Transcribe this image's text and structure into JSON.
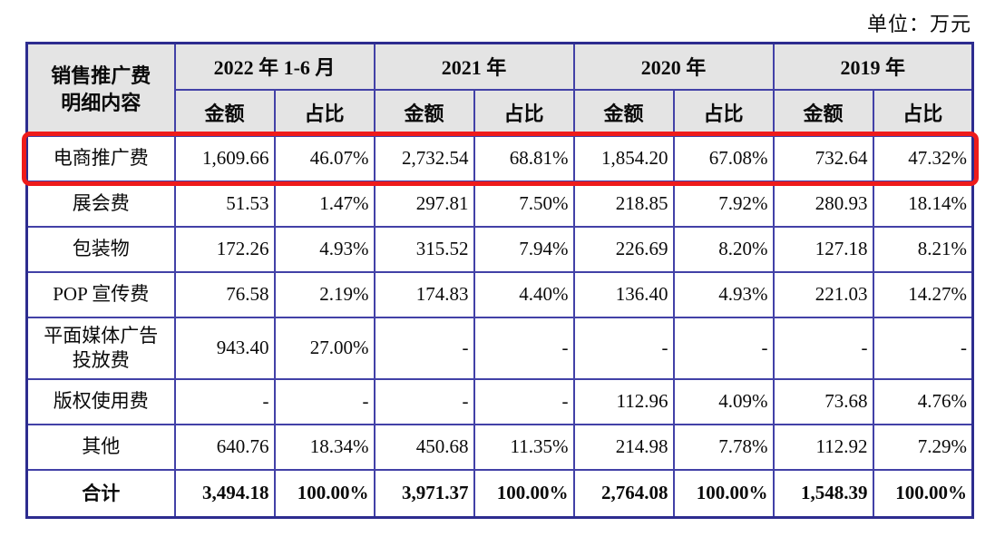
{
  "unit_label": "单位：万元",
  "colors": {
    "outer_border": "#2d2c8f",
    "inner_border": "#4241a7",
    "header_bg": "#e4e4e4",
    "highlight": "#ee1b1b"
  },
  "table": {
    "corner_line1": "销售推广费",
    "corner_line2": "明细内容",
    "col_groups": [
      "2022 年 1-6 月",
      "2021 年",
      "2020 年",
      "2019 年"
    ],
    "sub_amount": "金额",
    "sub_ratio": "占比",
    "rows": [
      {
        "label": "电商推广费",
        "values": [
          "1,609.66",
          "46.07%",
          "2,732.54",
          "68.81%",
          "1,854.20",
          "67.08%",
          "732.64",
          "47.32%"
        ]
      },
      {
        "label": "展会费",
        "values": [
          "51.53",
          "1.47%",
          "297.81",
          "7.50%",
          "218.85",
          "7.92%",
          "280.93",
          "18.14%"
        ]
      },
      {
        "label": "包装物",
        "values": [
          "172.26",
          "4.93%",
          "315.52",
          "7.94%",
          "226.69",
          "8.20%",
          "127.18",
          "8.21%"
        ]
      },
      {
        "label": "POP 宣传费",
        "values": [
          "76.58",
          "2.19%",
          "174.83",
          "4.40%",
          "136.40",
          "4.93%",
          "221.03",
          "14.27%"
        ]
      },
      {
        "label": "平面媒体广告投放费",
        "values": [
          "943.40",
          "27.00%",
          "-",
          "-",
          "-",
          "-",
          "-",
          "-"
        ]
      },
      {
        "label": "版权使用费",
        "values": [
          "-",
          "-",
          "-",
          "-",
          "112.96",
          "4.09%",
          "73.68",
          "4.76%"
        ]
      },
      {
        "label": "其他",
        "values": [
          "640.76",
          "18.34%",
          "450.68",
          "11.35%",
          "214.98",
          "7.78%",
          "112.92",
          "7.29%"
        ]
      },
      {
        "label": "合计",
        "values": [
          "3,494.18",
          "100.00%",
          "3,971.37",
          "100.00%",
          "2,764.08",
          "100.00%",
          "1,548.39",
          "100.00%"
        ]
      }
    ]
  }
}
